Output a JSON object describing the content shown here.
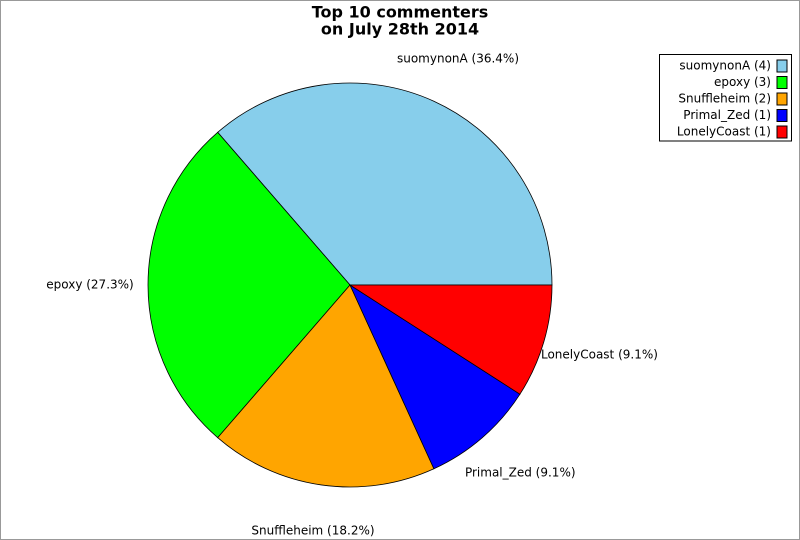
{
  "chart_data": {
    "type": "pie",
    "title": [
      "Top 10 commenters",
      "on July 28th 2014"
    ],
    "categories": [
      "suomynonA (4)",
      "epoxy (3)",
      "Snuffleheim (2)",
      "Primal_Zed (1)",
      "LonelyCoast (1)"
    ],
    "values": [
      36.4,
      27.3,
      18.2,
      9.1,
      9.1
    ],
    "value_labels": [
      "suomynonA (36.4%)",
      "epoxy (27.3%)",
      "Snuffleheim (18.2%)",
      "Primal_Zed (9.1%)",
      "LonelyCoast (9.1%)"
    ],
    "colors": [
      "#87ceeb",
      "#00ff00",
      "#ffa500",
      "#0000ff",
      "#ff0000"
    ],
    "legend": "upper right"
  }
}
